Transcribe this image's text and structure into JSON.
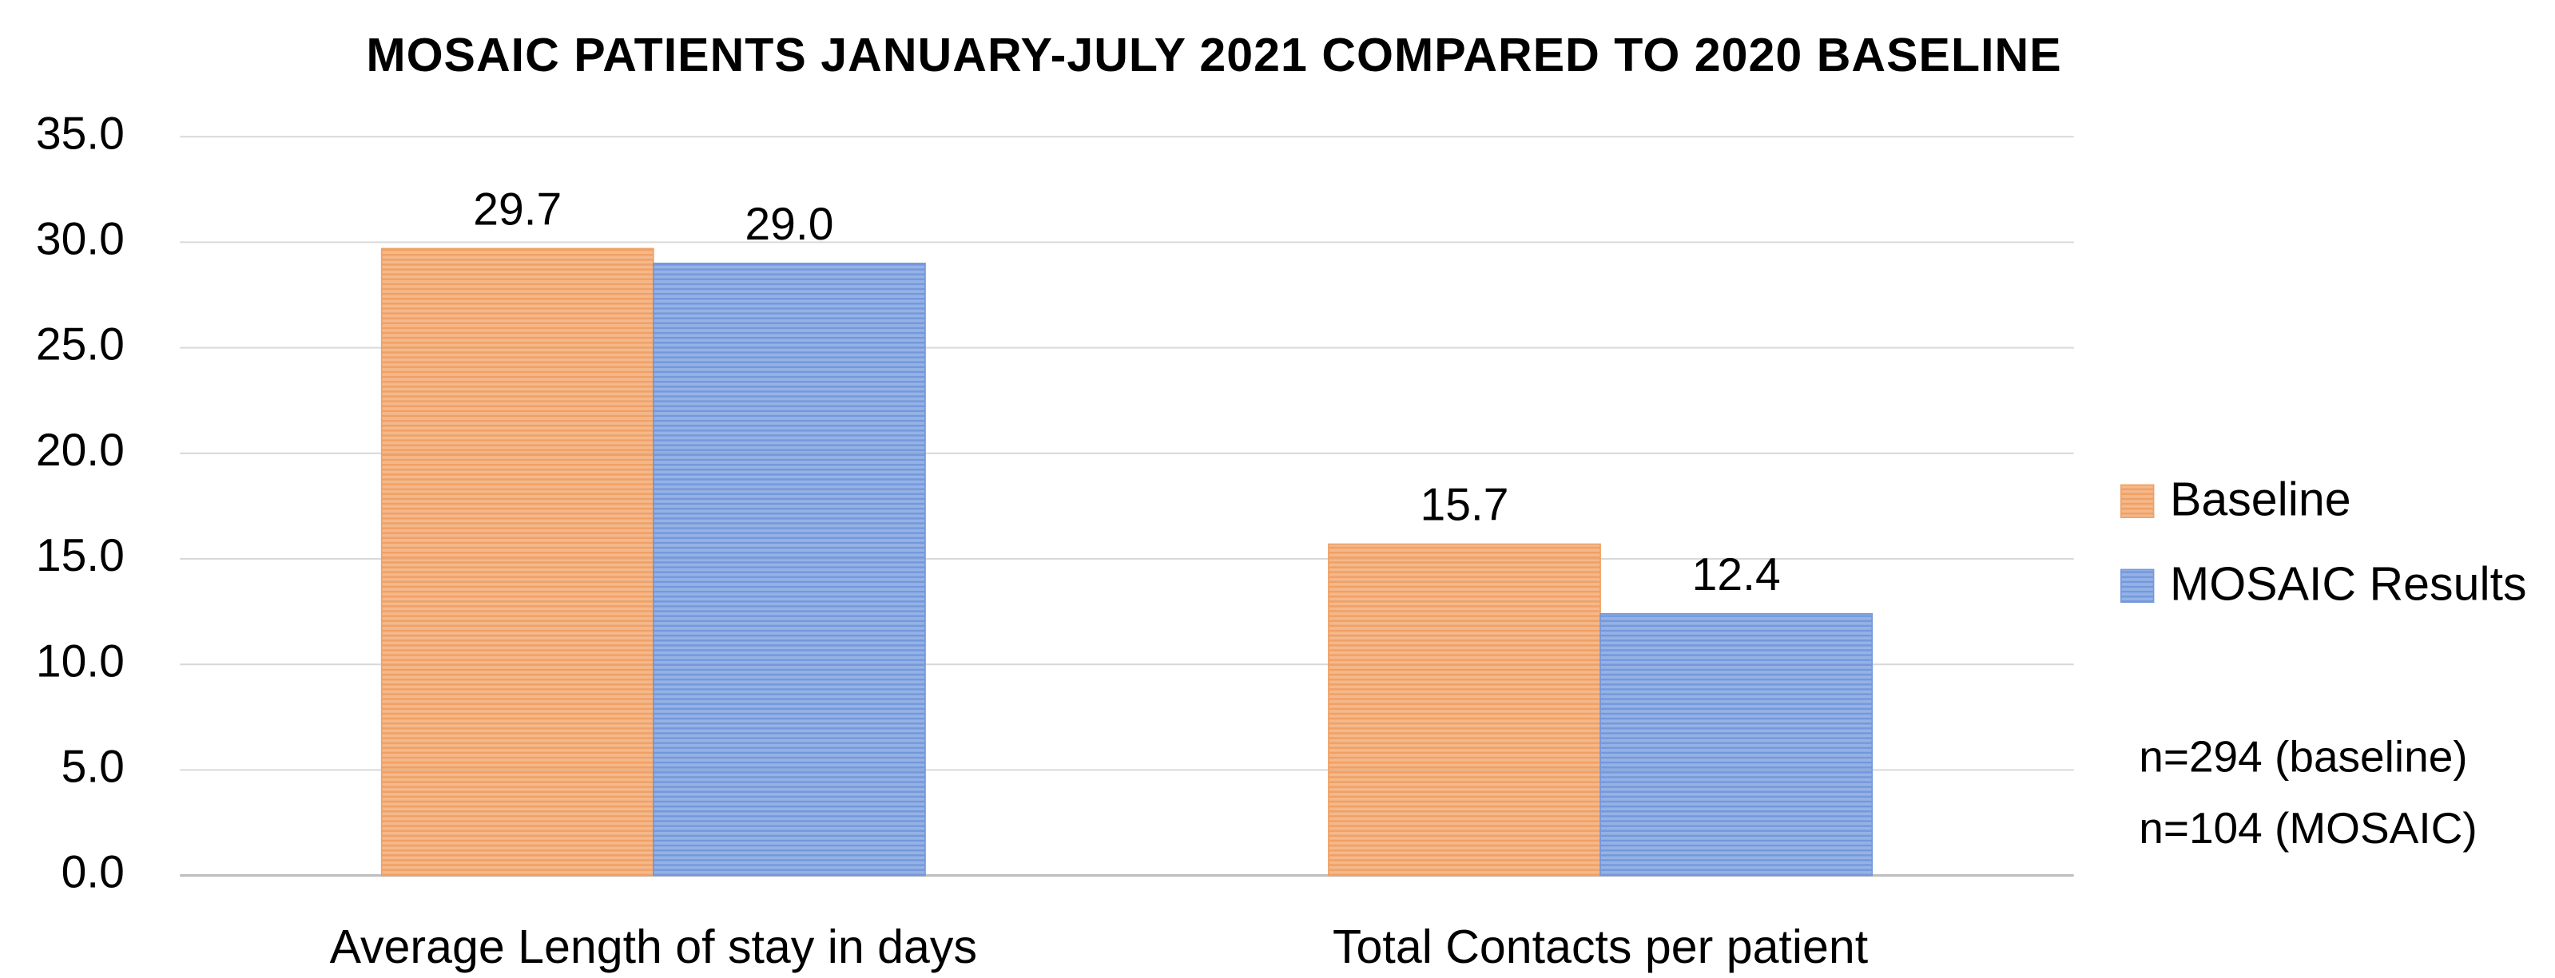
{
  "chart_data": {
    "type": "bar",
    "title": "MOSAIC PATIENTS JANUARY-JULY 2021 COMPARED TO 2020 BASELINE",
    "categories": [
      "Average Length of stay in days",
      "Total Contacts per patient"
    ],
    "series": [
      {
        "name": "Baseline",
        "color": "#f0a064",
        "values": [
          29.7,
          15.7
        ],
        "value_labels": [
          "29.7",
          "15.7"
        ]
      },
      {
        "name": "MOSAIC Results",
        "color": "#7398dc",
        "values": [
          29,
          12.4
        ],
        "value_labels": [
          "29.0",
          "12.4"
        ]
      }
    ],
    "ylim": [
      0,
      35
    ],
    "yticks": [
      {
        "value": 0,
        "label": "0.0"
      },
      {
        "value": 5,
        "label": "5.0"
      },
      {
        "value": 10,
        "label": "10.0"
      },
      {
        "value": 15,
        "label": "15.0"
      },
      {
        "value": 20,
        "label": "20.0"
      },
      {
        "value": 25,
        "label": "25.0"
      },
      {
        "value": 30,
        "label": "30.0"
      },
      {
        "value": 35,
        "label": "35.0"
      }
    ],
    "grid": true,
    "legend": "right",
    "annotations": [
      "n=294 (baseline)",
      "n=104 (MOSAIC)"
    ]
  }
}
